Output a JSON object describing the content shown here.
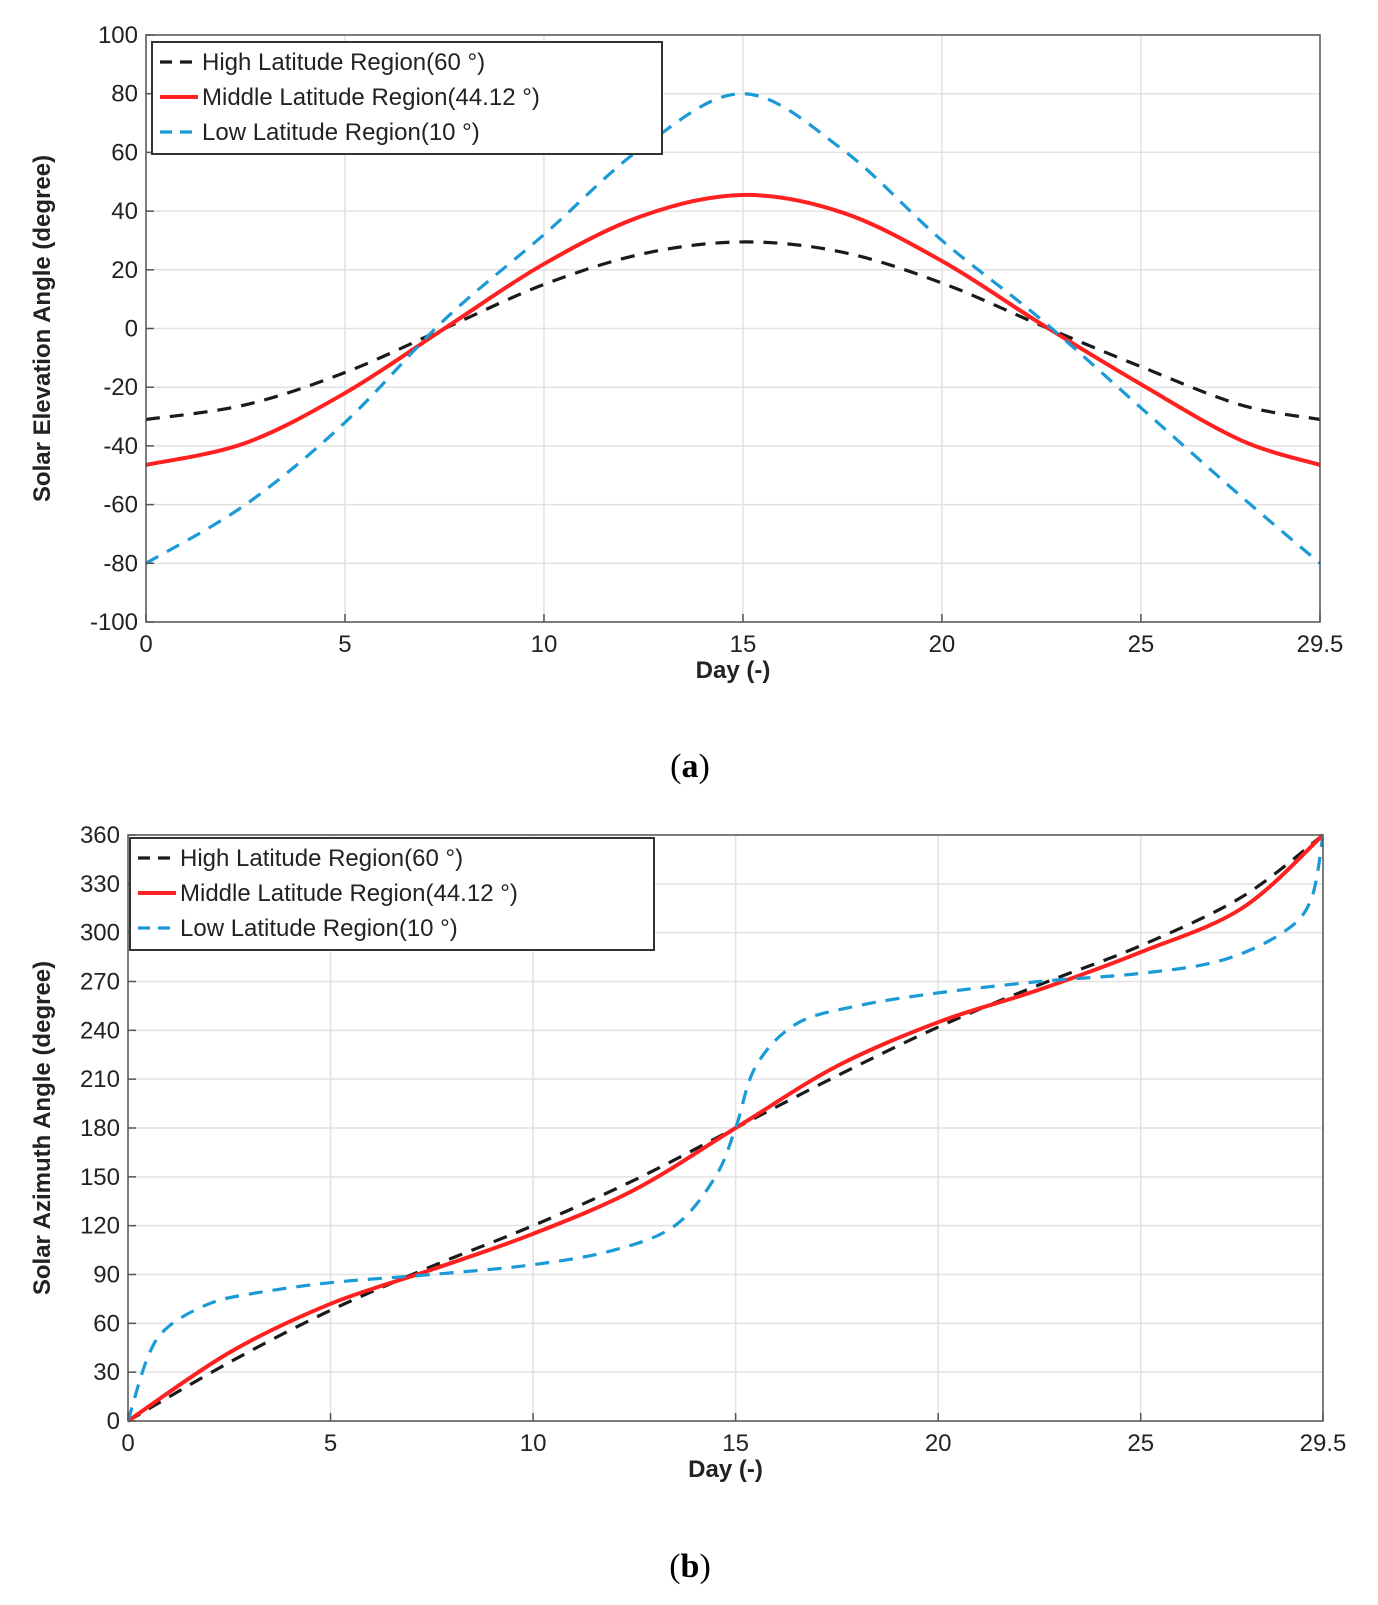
{
  "chart_data": [
    {
      "type": "line",
      "panel": "(a)",
      "caption_letter": "a",
      "xlabel": "Day (-)",
      "ylabel": "Solar Elevation Angle (degree)",
      "xlim": [
        0,
        29.5
      ],
      "ylim": [
        -100,
        100
      ],
      "xticks": [
        0,
        5,
        10,
        15,
        20,
        25,
        29.5
      ],
      "xtick_labels": [
        "0",
        "5",
        "10",
        "15",
        "20",
        "25",
        "29.5"
      ],
      "yticks": [
        -100,
        -80,
        -60,
        -40,
        -20,
        0,
        20,
        40,
        60,
        80,
        100
      ],
      "ytick_labels": [
        "-100",
        "-80",
        "-60",
        "-40",
        "-20",
        "0",
        "20",
        "40",
        "60",
        "80",
        "100"
      ],
      "grid": true,
      "legend_position": "top-left",
      "series": [
        {
          "name": "High Latitude Region(60 °)",
          "color": "#1a1a1a",
          "dash": "dashed",
          "x": [
            0,
            2.5,
            5,
            7.5,
            10,
            12.5,
            15,
            17.5,
            20,
            22.5,
            25,
            27.5,
            29.5
          ],
          "values": [
            -31,
            -26,
            -15,
            0,
            15,
            25.5,
            29.5,
            26,
            15.5,
            1,
            -13,
            -26,
            -31
          ]
        },
        {
          "name": "Middle Latitude Region(44.12 °)",
          "color": "#ff2020",
          "dash": "solid",
          "x": [
            0,
            2.5,
            5,
            7.5,
            10,
            12.5,
            15,
            17.5,
            20,
            22.5,
            25,
            27.5,
            29.5
          ],
          "values": [
            -46.5,
            -39,
            -22,
            0,
            22,
            38.5,
            45.5,
            39.5,
            23,
            1.5,
            -19,
            -38,
            -46.5
          ]
        },
        {
          "name": "Low Latitude Region(10 °)",
          "color": "#1a9ad6",
          "dash": "dashed",
          "x": [
            0,
            2.5,
            5,
            7.5,
            10,
            12.5,
            15,
            17.5,
            20,
            22.5,
            25,
            27.5,
            29.5
          ],
          "values": [
            -80,
            -60,
            -32,
            3,
            32,
            62,
            80,
            61,
            30,
            3,
            -27,
            -57,
            -80
          ]
        }
      ]
    },
    {
      "type": "line",
      "panel": "(b)",
      "caption_letter": "b",
      "xlabel": "Day (-)",
      "ylabel": "Solar Azimuth Angle (degree)",
      "xlim": [
        0,
        29.5
      ],
      "ylim": [
        0,
        360
      ],
      "xticks": [
        0,
        5,
        10,
        15,
        20,
        25,
        29.5
      ],
      "xtick_labels": [
        "0",
        "5",
        "10",
        "15",
        "20",
        "25",
        "29.5"
      ],
      "yticks": [
        0,
        30,
        60,
        90,
        120,
        150,
        180,
        210,
        240,
        270,
        300,
        330,
        360
      ],
      "ytick_labels": [
        "0",
        "30",
        "60",
        "90",
        "120",
        "150",
        "180",
        "210",
        "240",
        "270",
        "300",
        "330",
        "360"
      ],
      "grid": true,
      "legend_position": "top-left",
      "series": [
        {
          "name": "High Latitude Region(60 °)",
          "color": "#1a1a1a",
          "dash": "dashed",
          "x": [
            0,
            2.5,
            5,
            7.5,
            10,
            12.5,
            15,
            17.5,
            20,
            22.5,
            25,
            27.5,
            29.5
          ],
          "values": [
            0,
            36,
            68,
            95,
            120,
            148,
            180,
            212,
            242,
            268,
            292,
            322,
            360
          ]
        },
        {
          "name": "Middle Latitude Region(44.12 °)",
          "color": "#ff2020",
          "dash": "solid",
          "x": [
            0,
            2.5,
            5,
            7.5,
            10,
            12.5,
            15,
            17.5,
            20,
            22.5,
            25,
            27.5,
            29.5
          ],
          "values": [
            0,
            42,
            72,
            93,
            115,
            142,
            180,
            218,
            245,
            265,
            288,
            315,
            360
          ]
        },
        {
          "name": "Low Latitude Region(10 °)",
          "color": "#1a9ad6",
          "dash": "dashed",
          "x": [
            0,
            0.5,
            1,
            2,
            3,
            5,
            7.5,
            10,
            12,
            13.5,
            14.5,
            15,
            15.5,
            16.5,
            18,
            20,
            22.5,
            25,
            27,
            28.5,
            29.2,
            29.5
          ],
          "values": [
            0,
            40,
            58,
            72,
            78,
            85,
            90,
            96,
            105,
            120,
            150,
            180,
            218,
            244,
            255,
            263,
            270,
            275,
            283,
            300,
            320,
            360
          ]
        }
      ]
    }
  ]
}
